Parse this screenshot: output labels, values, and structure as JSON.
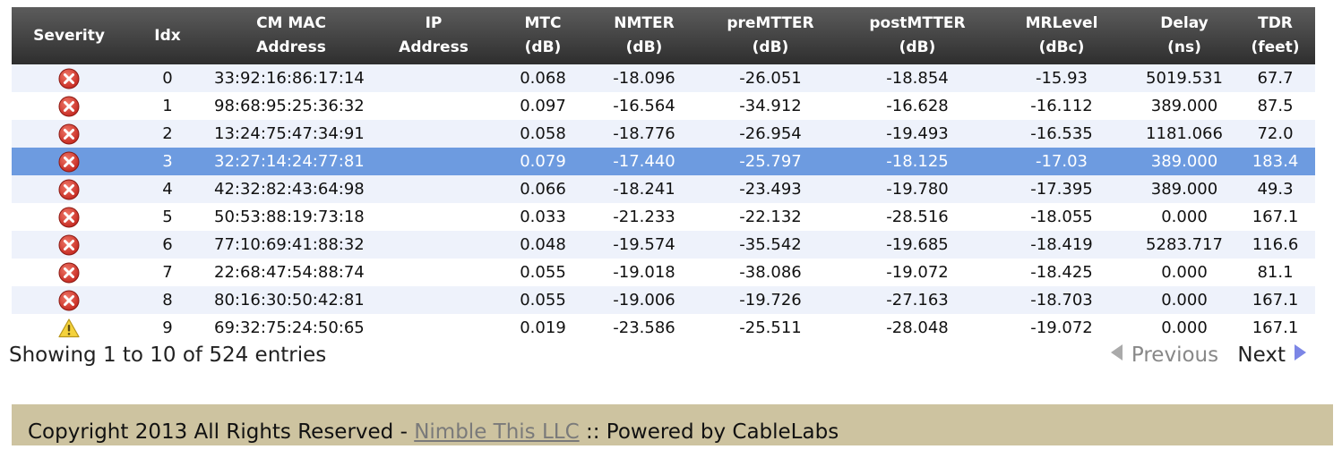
{
  "table": {
    "columns": [
      {
        "line1": "Severity",
        "line2": ""
      },
      {
        "line1": "Idx",
        "line2": ""
      },
      {
        "line1": "CM MAC",
        "line2": "Address"
      },
      {
        "line1": "IP",
        "line2": "Address"
      },
      {
        "line1": "MTC",
        "line2": "(dB)"
      },
      {
        "line1": "NMTER",
        "line2": "(dB)"
      },
      {
        "line1": "preMTTER",
        "line2": "(dB)"
      },
      {
        "line1": "postMTTER",
        "line2": "(dB)"
      },
      {
        "line1": "MRLevel",
        "line2": "(dBc)"
      },
      {
        "line1": "Delay",
        "line2": "(ns)"
      },
      {
        "line1": "TDR",
        "line2": "(feet)"
      }
    ],
    "selected_row": 3,
    "rows": [
      {
        "severity": "error-icon",
        "idx": "0",
        "mac": "33:92:16:86:17:14",
        "ip": "",
        "mtc": "0.068",
        "nmter": "-18.096",
        "premtter": "-26.051",
        "postmtter": "-18.854",
        "mrlevel": "-15.93",
        "delay": "5019.531",
        "tdr": "67.7"
      },
      {
        "severity": "error-icon",
        "idx": "1",
        "mac": "98:68:95:25:36:32",
        "ip": "",
        "mtc": "0.097",
        "nmter": "-16.564",
        "premtter": "-34.912",
        "postmtter": "-16.628",
        "mrlevel": "-16.112",
        "delay": "389.000",
        "tdr": "87.5"
      },
      {
        "severity": "error-icon",
        "idx": "2",
        "mac": "13:24:75:47:34:91",
        "ip": "",
        "mtc": "0.058",
        "nmter": "-18.776",
        "premtter": "-26.954",
        "postmtter": "-19.493",
        "mrlevel": "-16.535",
        "delay": "1181.066",
        "tdr": "72.0"
      },
      {
        "severity": "error-icon",
        "idx": "3",
        "mac": "32:27:14:24:77:81",
        "ip": "",
        "mtc": "0.079",
        "nmter": "-17.440",
        "premtter": "-25.797",
        "postmtter": "-18.125",
        "mrlevel": "-17.03",
        "delay": "389.000",
        "tdr": "183.4"
      },
      {
        "severity": "error-icon",
        "idx": "4",
        "mac": "42:32:82:43:64:98",
        "ip": "",
        "mtc": "0.066",
        "nmter": "-18.241",
        "premtter": "-23.493",
        "postmtter": "-19.780",
        "mrlevel": "-17.395",
        "delay": "389.000",
        "tdr": "49.3"
      },
      {
        "severity": "error-icon",
        "idx": "5",
        "mac": "50:53:88:19:73:18",
        "ip": "",
        "mtc": "0.033",
        "nmter": "-21.233",
        "premtter": "-22.132",
        "postmtter": "-28.516",
        "mrlevel": "-18.055",
        "delay": "0.000",
        "tdr": "167.1"
      },
      {
        "severity": "error-icon",
        "idx": "6",
        "mac": "77:10:69:41:88:32",
        "ip": "",
        "mtc": "0.048",
        "nmter": "-19.574",
        "premtter": "-35.542",
        "postmtter": "-19.685",
        "mrlevel": "-18.419",
        "delay": "5283.717",
        "tdr": "116.6"
      },
      {
        "severity": "error-icon",
        "idx": "7",
        "mac": "22:68:47:54:88:74",
        "ip": "",
        "mtc": "0.055",
        "nmter": "-19.018",
        "premtter": "-38.086",
        "postmtter": "-19.072",
        "mrlevel": "-18.425",
        "delay": "0.000",
        "tdr": "81.1"
      },
      {
        "severity": "error-icon",
        "idx": "8",
        "mac": "80:16:30:50:42:81",
        "ip": "",
        "mtc": "0.055",
        "nmter": "-19.006",
        "premtter": "-19.726",
        "postmtter": "-27.163",
        "mrlevel": "-18.703",
        "delay": "0.000",
        "tdr": "167.1"
      },
      {
        "severity": "warning-icon",
        "idx": "9",
        "mac": "69:32:75:24:50:65",
        "ip": "",
        "mtc": "0.019",
        "nmter": "-23.586",
        "premtter": "-25.511",
        "postmtter": "-28.048",
        "mrlevel": "-19.072",
        "delay": "0.000",
        "tdr": "167.1"
      }
    ]
  },
  "info": {
    "text": "Showing 1 to 10 of 524 entries"
  },
  "pager": {
    "previous_label": "Previous",
    "next_label": "Next"
  },
  "footer": {
    "prefix": "Copyright 2013 All Rights Reserved - ",
    "link_label": "Nimble This LLC",
    "suffix": " :: Powered by CableLabs"
  },
  "colors": {
    "header_bg": "#3a3a3a",
    "row_alt_bg": "#eef2fb",
    "selected_row_bg": "#6d9be0",
    "error_icon": "#c62a22",
    "warning_icon": "#f4d23c",
    "footer_bg": "#cdc3a0"
  }
}
